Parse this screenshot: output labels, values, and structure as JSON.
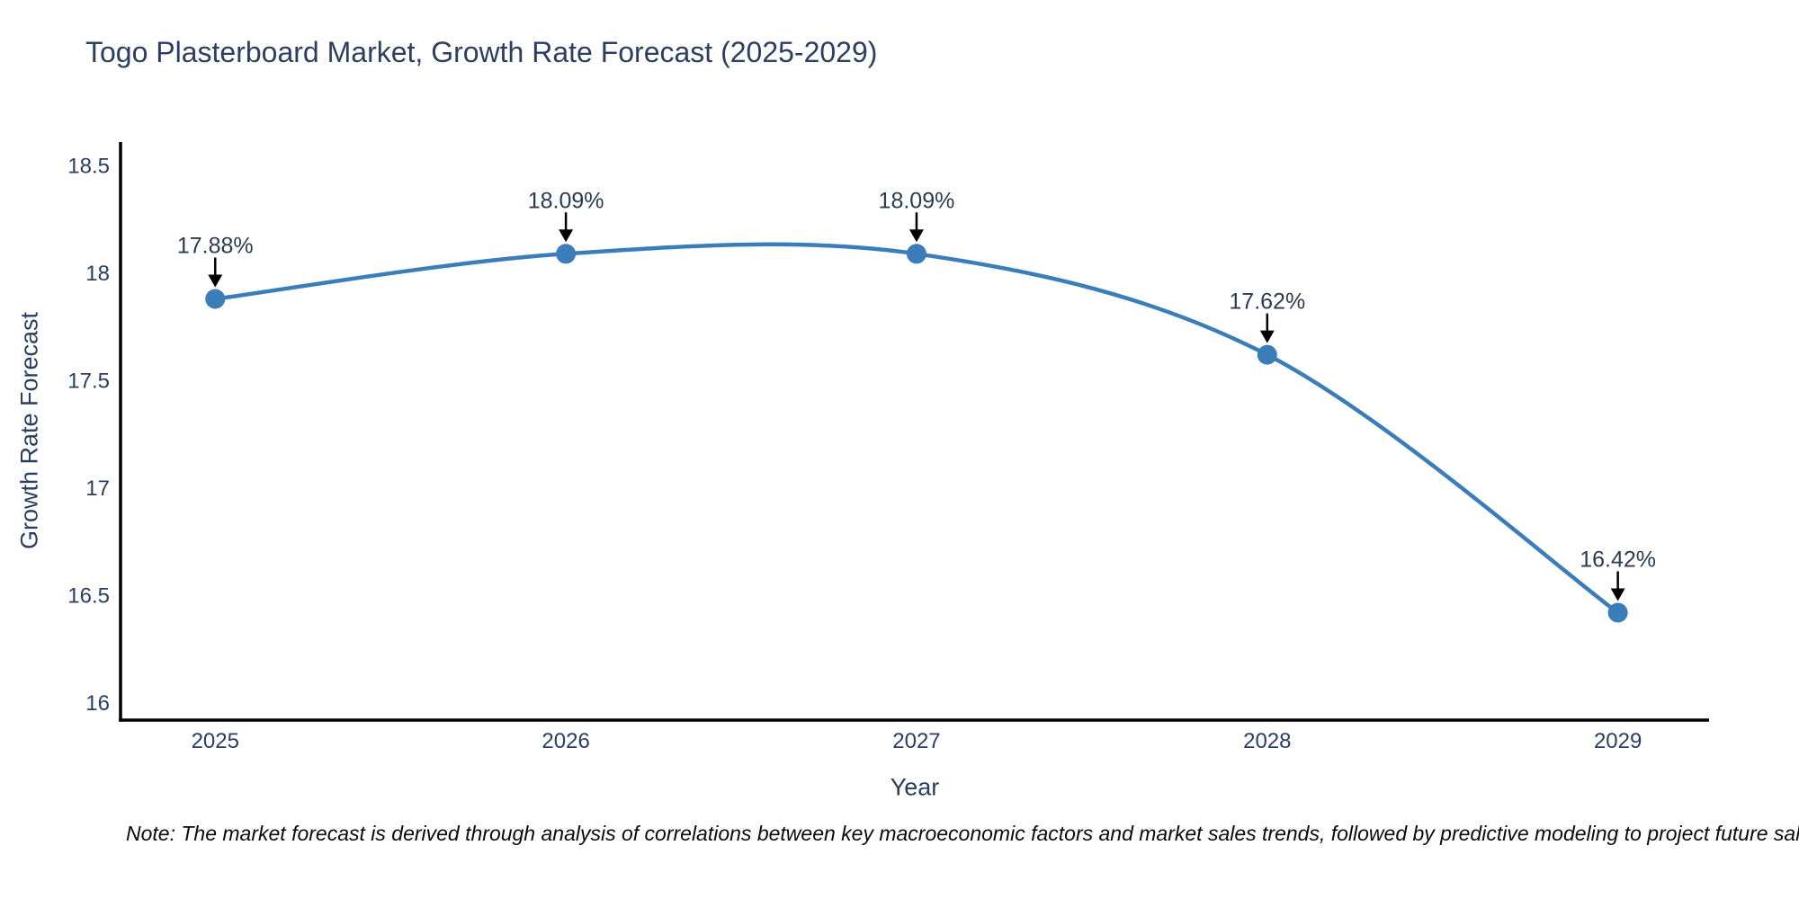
{
  "title": "Togo Plasterboard Market, Growth Rate Forecast (2025-2029)",
  "note": "Note: The market forecast is derived through analysis of correlations between key macroeconomic factors and market sales trends, followed by predictive modeling to project future sal",
  "chart_data": {
    "type": "line",
    "title": "Togo Plasterboard Market, Growth Rate Forecast (2025-2029)",
    "xlabel": "Year",
    "ylabel": "Growth Rate Forecast",
    "x": [
      2025,
      2026,
      2027,
      2028,
      2029
    ],
    "values": [
      17.88,
      18.09,
      18.09,
      17.62,
      16.42
    ],
    "point_labels": [
      "17.88%",
      "18.09%",
      "18.09%",
      "17.62%",
      "16.42%"
    ],
    "x_tick_labels": [
      "2025",
      "2026",
      "2027",
      "2028",
      "2029"
    ],
    "y_tick_values": [
      16,
      16.5,
      17,
      17.5,
      18,
      18.5
    ],
    "y_tick_labels": [
      "16",
      "16.5",
      "17",
      "17.5",
      "18",
      "18.5"
    ],
    "xlim": [
      2024.73,
      2029.26
    ],
    "ylim": [
      15.92,
      18.61
    ],
    "line_shape": "spline",
    "grid": false,
    "legend": false,
    "colors": {
      "line": "#3b7db9",
      "marker": "#3b7db9",
      "annotation_text": "#2b3b50",
      "annotation_arrow": "#000000",
      "axis_line": "#000000",
      "tick_text": "#2a3f5f",
      "title_text": "#2d3e5f",
      "note_text": "#0a0a0a",
      "background": "#ffffff"
    }
  }
}
